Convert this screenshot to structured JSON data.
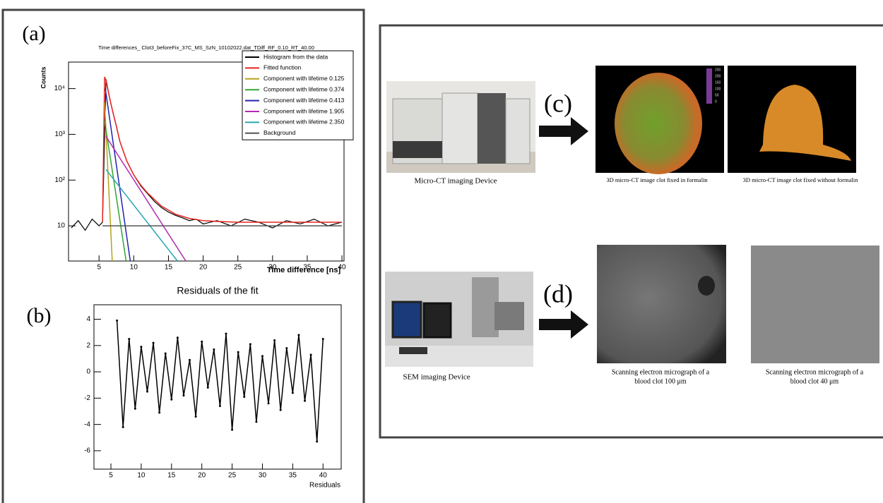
{
  "panel_labels": [
    "(a)",
    "(b)",
    "(c)",
    "(d)"
  ],
  "chart_data": [
    {
      "type": "line",
      "title": "Time differences_ Clot3_beforeFix_37C_MS_SzN_10102022.dat_TDiff_RF_0.10_RT_40.00",
      "x_label": "Time difference [ns]",
      "y_label": "Counts",
      "log_y": true,
      "legend": "top-right",
      "xlim": [
        0.6,
        40.3
      ],
      "ylim": [
        1.7,
        38000
      ],
      "xticks": [
        5,
        10,
        15,
        20,
        25,
        30,
        35,
        40
      ],
      "yticks": [
        10,
        {
          "value": 100,
          "label": "10²"
        },
        {
          "value": 1000,
          "label": "10³"
        },
        {
          "value": 10000,
          "label": "10⁴"
        }
      ],
      "series": [
        {
          "name": "Histogram from the data",
          "color": "#000000",
          "x": [
            1,
            2,
            3,
            4,
            5,
            5.5,
            6,
            6.5,
            7,
            7.5,
            8,
            9,
            10,
            11,
            12,
            13,
            14,
            15,
            16,
            17,
            18,
            19,
            20,
            22,
            24,
            26,
            28,
            30,
            32,
            34,
            36,
            38,
            40
          ],
          "values": [
            9,
            13,
            8,
            14,
            10,
            12,
            16000,
            6500,
            3000,
            1500,
            700,
            260,
            130,
            75,
            50,
            34,
            25,
            20,
            17,
            15,
            13,
            14,
            11,
            13,
            10,
            14,
            12,
            9,
            13,
            11,
            14,
            10,
            12
          ]
        },
        {
          "name": "Fitted function",
          "color": "#e8231f",
          "x": [
            5.5,
            5.8,
            6,
            6.5,
            7,
            7.5,
            8,
            9,
            10,
            11,
            12,
            14,
            16,
            18,
            20,
            22,
            25,
            30,
            35,
            40
          ],
          "values": [
            12,
            18000,
            15000,
            6500,
            3000,
            1500,
            700,
            260,
            130,
            78,
            52,
            27,
            18,
            14.5,
            13,
            12.5,
            12,
            12,
            12,
            12
          ]
        },
        {
          "name": "Component with lifetime 0.125",
          "color": "#b5a21a",
          "x": [
            5.8,
            6.9
          ],
          "values": [
            5000,
            1.7
          ]
        },
        {
          "name": "Component with lifetime 0.374",
          "color": "#33a532",
          "x": [
            5.8,
            8.9
          ],
          "values": [
            2000,
            1.7
          ]
        },
        {
          "name": "Component with lifetime 0.413",
          "color": "#2323b0",
          "x": [
            5.9,
            9.5
          ],
          "values": [
            10000,
            1.7
          ]
        },
        {
          "name": "Component with lifetime 1.905",
          "color": "#b02ab0",
          "x": [
            6,
            17.5
          ],
          "values": [
            900,
            1.7
          ]
        },
        {
          "name": "Component with lifetime 2.350",
          "color": "#2aa8b0",
          "x": [
            6,
            16.3
          ],
          "values": [
            170,
            1.7
          ]
        },
        {
          "name": "Background",
          "color": "#555555",
          "x": [
            5.5,
            40
          ],
          "values": [
            10,
            10
          ]
        }
      ]
    },
    {
      "type": "line",
      "title": "Residuals of the fit",
      "x_label": "Residuals",
      "markers": true,
      "xlim": [
        2.2,
        43
      ],
      "ylim": [
        -7.4,
        5.1
      ],
      "xticks": [
        5,
        10,
        15,
        20,
        25,
        30,
        35,
        40
      ],
      "yticks": [
        -6,
        -4,
        -2,
        0,
        2,
        4
      ],
      "series": [
        {
          "name": "Residuals",
          "color": "#000000",
          "x": [
            6,
            7,
            8,
            9,
            10,
            11,
            12,
            13,
            14,
            15,
            16,
            17,
            18,
            19,
            20,
            21,
            22,
            23,
            24,
            25,
            26,
            27,
            28,
            29,
            30,
            31,
            32,
            33,
            34,
            35,
            36,
            37,
            38,
            39,
            40
          ],
          "values": [
            3.9,
            -4.2,
            2.5,
            -2.8,
            1.9,
            -1.5,
            2.2,
            -3.1,
            1.4,
            -2.1,
            2.6,
            -1.8,
            0.9,
            -3.4,
            2.3,
            -1.2,
            1.7,
            -2.6,
            2.9,
            -4.4,
            1.5,
            -1.9,
            2.1,
            -3.8,
            1.2,
            -2.4,
            2.4,
            -2.9,
            1.8,
            -1.6,
            2.8,
            -2.2,
            1.3,
            -5.3,
            2.5
          ]
        }
      ]
    }
  ],
  "figure": {
    "colorbar_labels": [
      "250",
      "200",
      "150",
      "100",
      "50",
      "0"
    ],
    "captions": [
      "Micro-CT imaging Device",
      "3D micro-CT image clot fixed in formalin",
      "3D micro-CT image clot fixed without formalin",
      "SEM imaging Device"
    ],
    "sem_captions": [
      [
        "Scanning electron micrograph of a",
        "blood clot 100 μm"
      ],
      [
        "Scanning electron micrograph of a",
        "blood clot 40 μm"
      ]
    ]
  }
}
